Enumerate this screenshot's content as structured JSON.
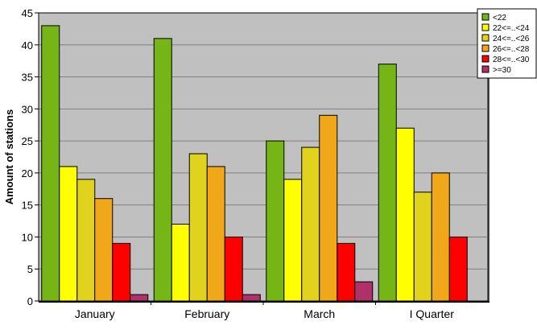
{
  "chart_data": {
    "type": "bar",
    "categories": [
      "January",
      "February",
      "March",
      "I Quarter"
    ],
    "series": [
      {
        "name": "<22",
        "color": "#76b516",
        "values": [
          43,
          41,
          25,
          37
        ]
      },
      {
        "name": "22<=..<24",
        "color": "#ffff00",
        "values": [
          21,
          12,
          19,
          27
        ]
      },
      {
        "name": "24<=..<26",
        "color": "#e1d21e",
        "values": [
          19,
          23,
          24,
          17
        ]
      },
      {
        "name": "26<=..<28",
        "color": "#f0a81a",
        "values": [
          16,
          21,
          29,
          20
        ]
      },
      {
        "name": "28<=..<30",
        "color": "#ff0000",
        "values": [
          9,
          10,
          9,
          10
        ]
      },
      {
        "name": ">=30",
        "color": "#b0306a",
        "values": [
          1,
          1,
          3,
          0
        ]
      }
    ],
    "ylabel": "Amount of stations",
    "xlabel": "",
    "ylim": [
      0,
      45
    ],
    "yticks": [
      0,
      5,
      10,
      15,
      20,
      25,
      30,
      35,
      40,
      45
    ],
    "grid": true,
    "plot_background": "#c0c0c0",
    "legend_position": "top-right"
  }
}
